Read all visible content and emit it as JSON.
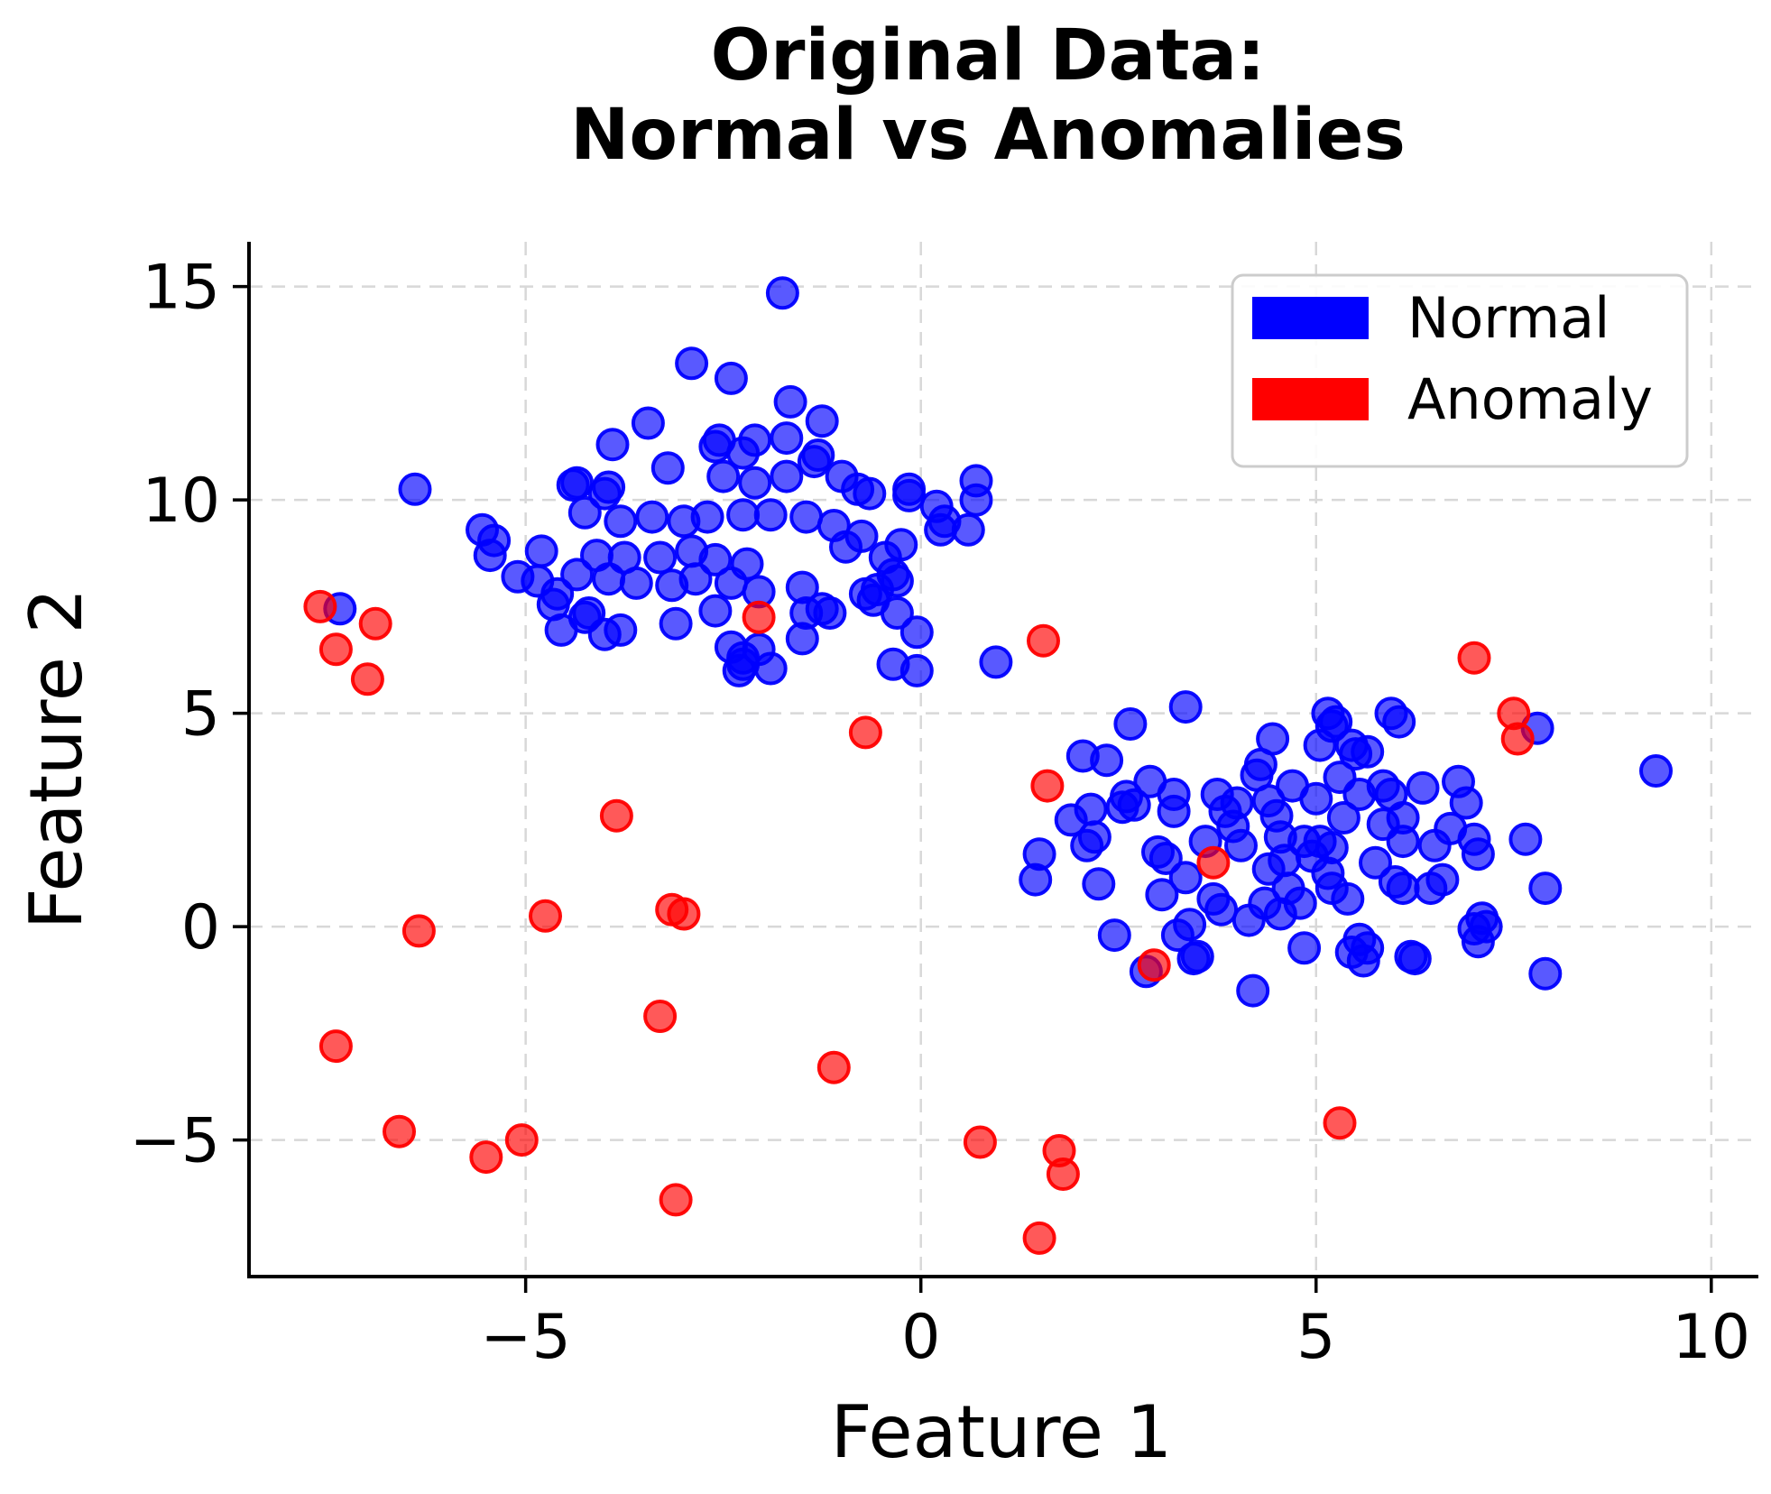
{
  "title": {
    "line1": "Original Data:",
    "line2": "Normal vs Anomalies"
  },
  "chart_data": {
    "type": "scatter",
    "title": "Original Data: Normal vs Anomalies",
    "xlabel": "Feature 1",
    "ylabel": "Feature 2",
    "xlim": [
      -8.5,
      10.55
    ],
    "ylim": [
      -8.2,
      16.05
    ],
    "grid": true,
    "grid_color": "#d8d8d8",
    "background_color": "#ffffff",
    "x_ticks": [
      {
        "value": -5,
        "label": "−5"
      },
      {
        "value": 0,
        "label": "0"
      },
      {
        "value": 5,
        "label": "5"
      },
      {
        "value": 10,
        "label": "10"
      }
    ],
    "y_ticks": [
      {
        "value": -5,
        "label": "−5"
      },
      {
        "value": 0,
        "label": "0"
      },
      {
        "value": 5,
        "label": "5"
      },
      {
        "value": 10,
        "label": "10"
      },
      {
        "value": 15,
        "label": "15"
      }
    ],
    "legend": {
      "position": "upper right",
      "entries": [
        {
          "label": "Normal",
          "color": "#0000ff"
        },
        {
          "label": "Anomaly",
          "color": "#ff0000"
        }
      ]
    },
    "marker": {
      "radius": 16.5,
      "fill_opacity": 0.65,
      "stroke_width": 4,
      "stroke_opacity": 0.95
    },
    "series": [
      {
        "name": "Normal",
        "color": "#0000ff",
        "points": [
          [
            -1.75,
            14.85
          ],
          [
            -2.9,
            13.2
          ],
          [
            -2.4,
            12.85
          ],
          [
            -1.65,
            12.3
          ],
          [
            -3.45,
            11.8
          ],
          [
            -3.9,
            11.3
          ],
          [
            -2.55,
            11.4
          ],
          [
            -2.1,
            11.4
          ],
          [
            -2.25,
            11.1
          ],
          [
            -2.6,
            11.25
          ],
          [
            -1.25,
            11.85
          ],
          [
            -1.3,
            11.05
          ],
          [
            -1.7,
            11.45
          ],
          [
            -1.35,
            10.9
          ],
          [
            -4.35,
            10.4
          ],
          [
            -3.95,
            10.3
          ],
          [
            -3.2,
            10.75
          ],
          [
            -2.5,
            10.55
          ],
          [
            -2.1,
            10.4
          ],
          [
            -1.7,
            10.55
          ],
          [
            -1.0,
            10.55
          ],
          [
            -0.8,
            10.25
          ],
          [
            -0.15,
            10.25
          ],
          [
            0.2,
            9.85
          ],
          [
            0.7,
            10.45
          ],
          [
            0.7,
            10.0
          ],
          [
            -6.4,
            10.25
          ],
          [
            -4.4,
            10.35
          ],
          [
            -4.0,
            10.15
          ],
          [
            -5.55,
            9.3
          ],
          [
            -5.4,
            9.05
          ],
          [
            -5.1,
            8.2
          ],
          [
            -4.85,
            8.1
          ],
          [
            -4.25,
            9.7
          ],
          [
            -4.1,
            8.7
          ],
          [
            -3.8,
            9.5
          ],
          [
            -3.75,
            8.65
          ],
          [
            -3.4,
            9.6
          ],
          [
            -3.3,
            8.65
          ],
          [
            -3.0,
            9.5
          ],
          [
            -2.9,
            8.8
          ],
          [
            -2.7,
            9.6
          ],
          [
            -2.6,
            8.6
          ],
          [
            -2.25,
            9.65
          ],
          [
            -2.2,
            8.5
          ],
          [
            -1.9,
            9.65
          ],
          [
            -1.45,
            9.6
          ],
          [
            -1.1,
            9.4
          ],
          [
            -0.75,
            9.15
          ],
          [
            -0.45,
            8.65
          ],
          [
            -0.25,
            8.95
          ],
          [
            0.25,
            9.3
          ],
          [
            0.6,
            9.3
          ],
          [
            -0.35,
            8.25
          ],
          [
            -5.45,
            8.7
          ],
          [
            -4.8,
            8.8
          ],
          [
            -4.6,
            7.8
          ],
          [
            -4.35,
            8.25
          ],
          [
            -4.2,
            7.35
          ],
          [
            -3.95,
            8.15
          ],
          [
            -3.8,
            6.95
          ],
          [
            -3.6,
            8.05
          ],
          [
            -3.15,
            8.0
          ],
          [
            -3.1,
            7.1
          ],
          [
            -2.85,
            8.15
          ],
          [
            -2.6,
            7.4
          ],
          [
            -2.4,
            8.05
          ],
          [
            -2.4,
            6.55
          ],
          [
            -2.25,
            6.3
          ],
          [
            -2.05,
            7.85
          ],
          [
            -2.05,
            6.5
          ],
          [
            -2.25,
            6.15
          ],
          [
            -1.5,
            7.95
          ],
          [
            -1.45,
            7.35
          ],
          [
            -1.5,
            6.75
          ],
          [
            -1.25,
            7.45
          ],
          [
            -0.7,
            7.8
          ],
          [
            -0.6,
            7.65
          ],
          [
            -0.3,
            7.35
          ],
          [
            -0.05,
            6.0
          ],
          [
            -0.35,
            6.15
          ],
          [
            -1.15,
            7.35
          ],
          [
            -4.65,
            7.55
          ],
          [
            -4.55,
            6.95
          ],
          [
            -4.25,
            7.25
          ],
          [
            -4.0,
            6.85
          ],
          [
            -0.95,
            8.9
          ],
          [
            -0.3,
            8.1
          ],
          [
            -0.55,
            7.9
          ],
          [
            -0.05,
            6.9
          ],
          [
            0.3,
            9.5
          ],
          [
            -0.15,
            10.1
          ],
          [
            -0.65,
            10.15
          ],
          [
            -7.35,
            7.45
          ],
          [
            -1.9,
            6.05
          ],
          [
            -2.3,
            6.0
          ],
          [
            0.95,
            6.2
          ],
          [
            3.35,
            5.15
          ],
          [
            5.15,
            5.0
          ],
          [
            5.95,
            5.0
          ],
          [
            2.65,
            4.75
          ],
          [
            2.05,
            4.0
          ],
          [
            2.35,
            3.9
          ],
          [
            2.15,
            2.75
          ],
          [
            2.2,
            2.1
          ],
          [
            2.1,
            1.9
          ],
          [
            2.25,
            1.0
          ],
          [
            2.45,
            -0.2
          ],
          [
            2.6,
            3.05
          ],
          [
            2.7,
            2.85
          ],
          [
            1.5,
            1.7
          ],
          [
            1.45,
            1.1
          ],
          [
            1.9,
            2.5
          ],
          [
            2.55,
            2.8
          ],
          [
            3.0,
            1.75
          ],
          [
            3.2,
            3.1
          ],
          [
            3.2,
            2.7
          ],
          [
            3.1,
            1.6
          ],
          [
            3.35,
            1.15
          ],
          [
            3.4,
            0.05
          ],
          [
            3.25,
            -0.2
          ],
          [
            3.45,
            -0.75
          ],
          [
            3.75,
            3.1
          ],
          [
            3.85,
            2.7
          ],
          [
            3.95,
            2.35
          ],
          [
            3.7,
            0.65
          ],
          [
            3.8,
            0.4
          ],
          [
            2.85,
            -1.05
          ],
          [
            3.5,
            -0.7
          ],
          [
            4.2,
            -1.5
          ],
          [
            4.25,
            3.55
          ],
          [
            4.3,
            3.8
          ],
          [
            4.4,
            2.95
          ],
          [
            4.55,
            2.1
          ],
          [
            4.4,
            1.35
          ],
          [
            4.35,
            0.55
          ],
          [
            4.55,
            0.3
          ],
          [
            4.65,
            0.9
          ],
          [
            4.8,
            0.55
          ],
          [
            4.85,
            2.0
          ],
          [
            4.95,
            1.65
          ],
          [
            5.05,
            2.0
          ],
          [
            5.2,
            1.85
          ],
          [
            5.15,
            1.25
          ],
          [
            5.2,
            0.9
          ],
          [
            5.4,
            0.65
          ],
          [
            5.55,
            -0.3
          ],
          [
            5.65,
            -0.5
          ],
          [
            5.6,
            -0.8
          ],
          [
            5.05,
            4.25
          ],
          [
            5.2,
            4.7
          ],
          [
            5.45,
            4.25
          ],
          [
            5.5,
            4.05
          ],
          [
            5.65,
            4.1
          ],
          [
            5.25,
            4.8
          ],
          [
            6.05,
            4.8
          ],
          [
            5.55,
            3.1
          ],
          [
            5.85,
            3.3
          ],
          [
            5.95,
            3.1
          ],
          [
            5.85,
            2.4
          ],
          [
            6.1,
            2.55
          ],
          [
            6.1,
            2.0
          ],
          [
            6.0,
            1.05
          ],
          [
            6.1,
            0.9
          ],
          [
            6.35,
            3.25
          ],
          [
            6.5,
            1.9
          ],
          [
            6.6,
            1.1
          ],
          [
            6.45,
            0.9
          ],
          [
            6.25,
            -0.75
          ],
          [
            6.8,
            3.4
          ],
          [
            6.9,
            2.9
          ],
          [
            7.0,
            2.05
          ],
          [
            7.05,
            1.7
          ],
          [
            7.65,
            2.05
          ],
          [
            7.8,
            4.65
          ],
          [
            7.9,
            0.9
          ],
          [
            7.15,
            0.0
          ],
          [
            7.1,
            0.2
          ],
          [
            7.05,
            -0.35
          ],
          [
            7.9,
            -1.1
          ],
          [
            9.3,
            3.65
          ],
          [
            5.45,
            -0.6
          ],
          [
            6.2,
            -0.7
          ],
          [
            7.0,
            -0.05
          ],
          [
            4.05,
            1.9
          ],
          [
            4.5,
            2.6
          ],
          [
            4.7,
            3.3
          ],
          [
            4.15,
            0.15
          ],
          [
            4.85,
            -0.5
          ],
          [
            5.35,
            2.55
          ],
          [
            5.0,
            3.0
          ],
          [
            4.6,
            1.55
          ],
          [
            5.75,
            1.5
          ],
          [
            6.7,
            2.3
          ],
          [
            5.3,
            3.5
          ],
          [
            4.0,
            2.9
          ],
          [
            3.6,
            2.0
          ],
          [
            4.45,
            4.4
          ],
          [
            2.9,
            3.4
          ],
          [
            3.05,
            0.75
          ]
        ]
      },
      {
        "name": "Anomaly",
        "color": "#ff0000",
        "points": [
          [
            -7.6,
            7.5
          ],
          [
            -6.9,
            7.1
          ],
          [
            -7.4,
            6.5
          ],
          [
            -7.0,
            5.8
          ],
          [
            -2.05,
            7.25
          ],
          [
            -0.7,
            4.55
          ],
          [
            -3.85,
            2.6
          ],
          [
            1.55,
            6.7
          ],
          [
            1.6,
            3.3
          ],
          [
            -6.35,
            -0.1
          ],
          [
            -4.75,
            0.25
          ],
          [
            -3.15,
            0.4
          ],
          [
            -3.0,
            0.3
          ],
          [
            -7.4,
            -2.8
          ],
          [
            -3.3,
            -2.1
          ],
          [
            -1.1,
            -3.3
          ],
          [
            -6.6,
            -4.8
          ],
          [
            -5.5,
            -5.4
          ],
          [
            -5.05,
            -5.0
          ],
          [
            -3.1,
            -6.4
          ],
          [
            0.75,
            -5.05
          ],
          [
            1.75,
            -5.25
          ],
          [
            1.8,
            -5.8
          ],
          [
            1.5,
            -7.3
          ],
          [
            5.3,
            -4.6
          ],
          [
            3.7,
            1.5
          ],
          [
            2.95,
            -0.9
          ],
          [
            7.0,
            6.3
          ],
          [
            7.5,
            5.0
          ],
          [
            7.55,
            4.4
          ]
        ]
      }
    ]
  }
}
